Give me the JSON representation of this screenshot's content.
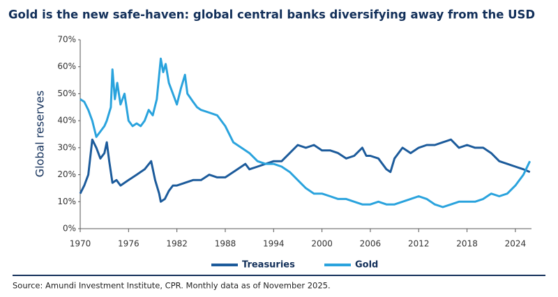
{
  "chart_data": {
    "type": "line",
    "title": "Gold is the new safe-haven: global central banks diversifying away from the USD",
    "ylabel": "Global reserves",
    "source": "Source: Amundi Investment Institute, CPR. Monthly data as of November 2025.",
    "xlim": [
      1970,
      2026
    ],
    "xticks": [
      1970,
      1976,
      1982,
      1988,
      1994,
      2000,
      2006,
      2012,
      2018,
      2024
    ],
    "ylim": [
      0,
      70
    ],
    "yticks": [
      {
        "value": 0,
        "label": "0%"
      },
      {
        "value": 10,
        "label": "10%"
      },
      {
        "value": 20,
        "label": "20%"
      },
      {
        "value": 30,
        "label": "30%"
      },
      {
        "value": 40,
        "label": "40%"
      },
      {
        "value": 50,
        "label": "50%"
      },
      {
        "value": 60,
        "label": "60%"
      },
      {
        "value": 70,
        "label": "70%"
      }
    ],
    "legend": "bottom",
    "series": [
      {
        "name": "Treasuries",
        "color": "#1c5b9b",
        "x": [
          1970,
          1970.5,
          1971,
          1971.5,
          1972,
          1972.5,
          1973,
          1973.3,
          1973.6,
          1974,
          1974.5,
          1975,
          1976,
          1977,
          1978,
          1978.8,
          1979.3,
          1979.8,
          1980,
          1980.5,
          1981,
          1981.5,
          1982,
          1983,
          1984,
          1985,
          1986,
          1987,
          1988,
          1989,
          1990,
          1990.5,
          1991,
          1992,
          1993,
          1994,
          1995,
          1996,
          1997,
          1998,
          1999,
          2000,
          2001,
          2002,
          2003,
          2004,
          2005,
          2005.5,
          2006,
          2007,
          2008,
          2008.5,
          2009,
          2010,
          2011,
          2012,
          2013,
          2014,
          2015,
          2016,
          2017,
          2018,
          2019,
          2020,
          2021,
          2022,
          2023,
          2024,
          2025,
          2025.8
        ],
        "values": [
          13,
          16,
          20,
          33,
          30,
          26,
          28,
          32,
          25,
          17,
          18,
          16,
          18,
          20,
          22,
          25,
          18,
          13,
          10,
          11,
          14,
          16,
          16,
          17,
          18,
          18,
          20,
          19,
          19,
          21,
          23,
          24,
          22,
          23,
          24,
          25,
          25,
          28,
          31,
          30,
          31,
          29,
          29,
          28,
          26,
          27,
          30,
          27,
          27,
          26,
          22,
          21,
          26,
          30,
          28,
          30,
          31,
          31,
          32,
          33,
          30,
          31,
          30,
          30,
          28,
          25,
          24,
          23,
          22,
          21
        ]
      },
      {
        "name": "Gold",
        "color": "#2aa3dd",
        "x": [
          1970,
          1970.5,
          1971,
          1971.5,
          1972,
          1972.5,
          1973,
          1973.3,
          1973.8,
          1974,
          1974.3,
          1974.6,
          1975,
          1975.5,
          1976,
          1976.5,
          1977,
          1977.5,
          1978,
          1978.5,
          1979,
          1979.5,
          1980,
          1980.3,
          1980.6,
          1981,
          1981.5,
          1982,
          1982.5,
          1983,
          1983.3,
          1984,
          1984.5,
          1985,
          1986,
          1987,
          1988,
          1989,
          1990,
          1991,
          1992,
          1993,
          1994,
          1995,
          1996,
          1997,
          1998,
          1999,
          2000,
          2001,
          2002,
          2003,
          2004,
          2005,
          2006,
          2007,
          2008,
          2009,
          2010,
          2011,
          2012,
          2013,
          2014,
          2015,
          2016,
          2017,
          2018,
          2019,
          2020,
          2021,
          2022,
          2023,
          2024,
          2025,
          2025.8
        ],
        "values": [
          48,
          47,
          44,
          40,
          34,
          36,
          38,
          40,
          45,
          59,
          48,
          54,
          46,
          50,
          40,
          38,
          39,
          38,
          40,
          44,
          42,
          48,
          63,
          58,
          61,
          54,
          50,
          46,
          52,
          57,
          50,
          47,
          45,
          44,
          43,
          42,
          38,
          32,
          30,
          28,
          25,
          24,
          24,
          23,
          21,
          18,
          15,
          13,
          13,
          12,
          11,
          11,
          10,
          9,
          9,
          10,
          9,
          9,
          10,
          11,
          12,
          11,
          9,
          8,
          9,
          10,
          10,
          10,
          11,
          13,
          12,
          13,
          16,
          20,
          25
        ]
      }
    ]
  }
}
